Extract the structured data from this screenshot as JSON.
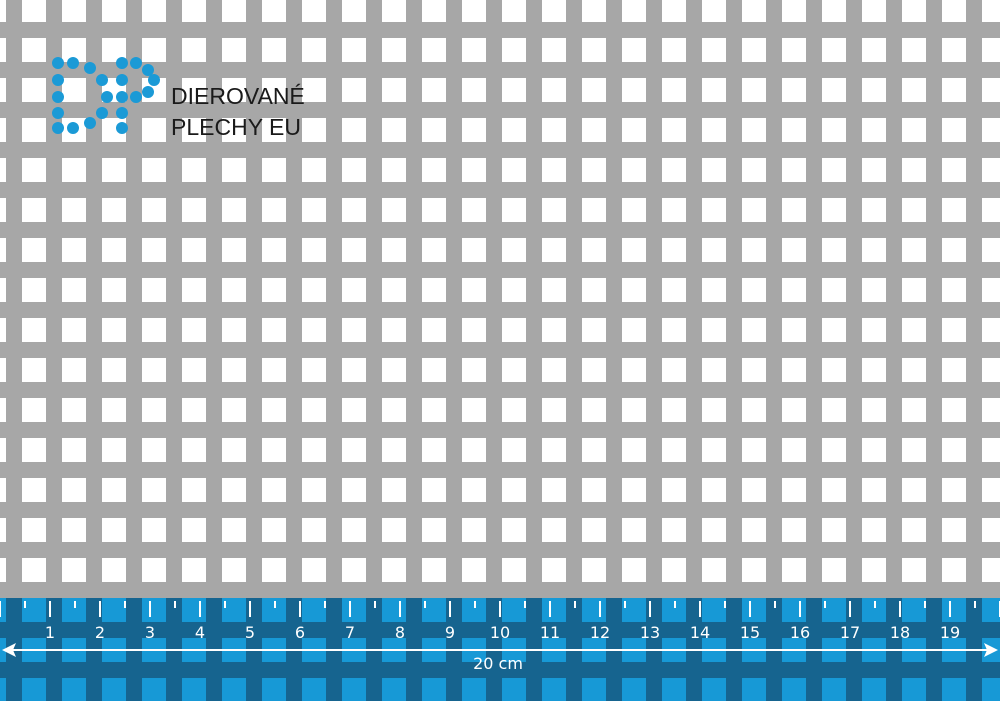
{
  "brand": {
    "name_line1": "DIEROVANÉ",
    "name_line2": "PLECHY EU",
    "logo_letters": "DP"
  },
  "ruler": {
    "tick_labels": [
      "1",
      "2",
      "3",
      "4",
      "5",
      "6",
      "7",
      "8",
      "9",
      "10",
      "11",
      "12",
      "13",
      "14",
      "15",
      "16",
      "17",
      "18",
      "19"
    ],
    "span_label": "20 cm",
    "units_count": 20
  },
  "colors": {
    "sheet": "#a7a7a7",
    "hole": "#ffffff",
    "ruler_band": "#16648f",
    "ruler_hole": "#1799d6",
    "logo_dot": "#1b9ad6",
    "text": "#1a1a1a",
    "ruler_text": "#ffffff"
  }
}
